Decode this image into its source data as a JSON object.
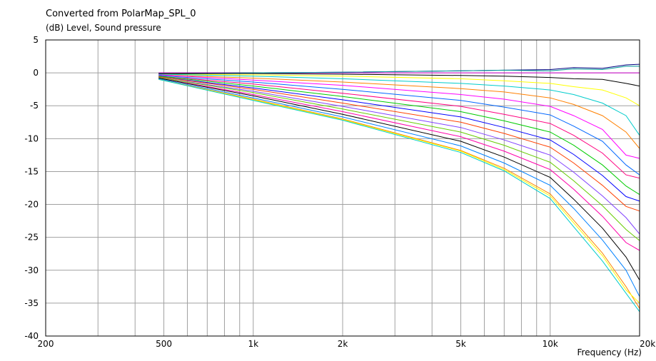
{
  "chart_data": {
    "type": "line",
    "title": "Converted from PolarMap_SPL_0",
    "subtitle": "(dB)  Level, Sound pressure",
    "xlabel": "Frequency  (Hz)",
    "ylabel": "(dB)  Level, Sound pressure",
    "x_scale": "log",
    "xlim": [
      200,
      20000
    ],
    "ylim": [
      -40,
      5
    ],
    "x_ticks": [
      200,
      500,
      1000,
      2000,
      5000,
      10000,
      20000
    ],
    "x_tick_labels": [
      "200",
      "500",
      "1k",
      "2k",
      "5k",
      "10k",
      "20k"
    ],
    "y_ticks": [
      5,
      0,
      -5,
      -10,
      -15,
      -20,
      -25,
      -30,
      -35,
      -40
    ],
    "y_tick_labels": [
      "5",
      "0",
      "-5",
      "-10",
      "-15",
      "-20",
      "-25",
      "-30",
      "-35",
      "-40"
    ],
    "grid": true,
    "x": [
      480,
      1000,
      2000,
      5000,
      7000,
      10000,
      12000,
      15000,
      18000,
      20000
    ],
    "series": [
      {
        "color": "#cc00cc",
        "values": [
          0,
          0,
          0,
          0,
          0,
          0,
          0,
          0,
          0,
          0
        ]
      },
      {
        "color": "#000080",
        "values": [
          -0.1,
          0,
          0.1,
          0.3,
          0.4,
          0.5,
          0.8,
          0.7,
          1.2,
          1.3
        ]
      },
      {
        "color": "#009999",
        "values": [
          -0.2,
          0,
          0.1,
          0.3,
          0.4,
          0.3,
          0.6,
          0.5,
          1.0,
          1.0
        ]
      },
      {
        "color": "#000000",
        "values": [
          -0.1,
          -0.1,
          -0.2,
          -0.4,
          -0.5,
          -0.7,
          -0.9,
          -1.0,
          -1.6,
          -2.0
        ]
      },
      {
        "color": "#ffff00",
        "values": [
          -0.2,
          -0.3,
          -0.5,
          -0.9,
          -1.2,
          -1.6,
          -2.1,
          -2.6,
          -3.8,
          -5.0
        ]
      },
      {
        "color": "#00cccc",
        "values": [
          -0.2,
          -0.5,
          -0.9,
          -1.6,
          -2.0,
          -2.6,
          -3.3,
          -4.6,
          -6.5,
          -9.5
        ]
      },
      {
        "color": "#ff8000",
        "values": [
          -0.3,
          -0.8,
          -1.4,
          -2.4,
          -2.9,
          -3.8,
          -4.8,
          -6.5,
          -9.0,
          -11.5
        ]
      },
      {
        "color": "#ff00ff",
        "values": [
          -0.3,
          -1.1,
          -1.9,
          -3.3,
          -4.0,
          -5.1,
          -6.5,
          -8.6,
          -12.5,
          -13.0
        ]
      },
      {
        "color": "#0066ff",
        "values": [
          -0.4,
          -1.4,
          -2.5,
          -4.2,
          -5.2,
          -6.4,
          -8.1,
          -10.4,
          -14.0,
          -15.5
        ]
      },
      {
        "color": "#ff0080",
        "values": [
          -0.5,
          -1.7,
          -3.1,
          -5.1,
          -6.3,
          -7.7,
          -9.5,
          -12.2,
          -15.5,
          -16.0
        ]
      },
      {
        "color": "#00cc00",
        "values": [
          -0.5,
          -2.0,
          -3.6,
          -5.9,
          -7.3,
          -9.0,
          -11.0,
          -14.0,
          -17.2,
          -18.5
        ]
      },
      {
        "color": "#0000ff",
        "values": [
          -0.6,
          -2.3,
          -4.1,
          -6.7,
          -8.3,
          -10.2,
          -12.4,
          -15.6,
          -18.8,
          -19.5
        ]
      },
      {
        "color": "#ff4000",
        "values": [
          -0.6,
          -2.5,
          -4.6,
          -7.5,
          -9.2,
          -11.3,
          -13.7,
          -17.1,
          -20.3,
          -21.0
        ]
      },
      {
        "color": "#8040ff",
        "values": [
          -0.7,
          -2.8,
          -5.1,
          -8.3,
          -10.2,
          -12.5,
          -15.1,
          -18.7,
          -22.0,
          -24.5
        ]
      },
      {
        "color": "#66cc00",
        "values": [
          -0.7,
          -3.0,
          -5.5,
          -9.0,
          -11.0,
          -13.6,
          -16.4,
          -20.2,
          -23.8,
          -25.5
        ]
      },
      {
        "color": "#ff00aa",
        "values": [
          -0.8,
          -3.3,
          -5.9,
          -9.7,
          -11.9,
          -14.7,
          -17.7,
          -21.8,
          -25.8,
          -27.0
        ]
      },
      {
        "color": "#000000",
        "values": [
          -0.8,
          -3.5,
          -6.3,
          -10.4,
          -12.8,
          -15.9,
          -19.2,
          -23.6,
          -28.0,
          -31.5
        ]
      },
      {
        "color": "#0080ff",
        "values": [
          -0.9,
          -3.8,
          -6.7,
          -11.1,
          -13.7,
          -17.1,
          -20.6,
          -25.4,
          -30.0,
          -34.0
        ]
      },
      {
        "color": "#ff8800",
        "values": [
          -1.0,
          -4.0,
          -7.0,
          -11.8,
          -14.5,
          -18.4,
          -22.4,
          -27.4,
          -32.5,
          -35.8
        ]
      },
      {
        "color": "#ffff00",
        "values": [
          -1.0,
          -4.1,
          -7.1,
          -11.9,
          -14.7,
          -18.7,
          -22.8,
          -27.8,
          -33.0,
          -35.0
        ]
      },
      {
        "color": "#00cccc",
        "values": [
          -1.0,
          -4.2,
          -7.2,
          -12.1,
          -14.9,
          -19.1,
          -23.4,
          -28.6,
          -33.5,
          -36.3
        ]
      }
    ]
  }
}
